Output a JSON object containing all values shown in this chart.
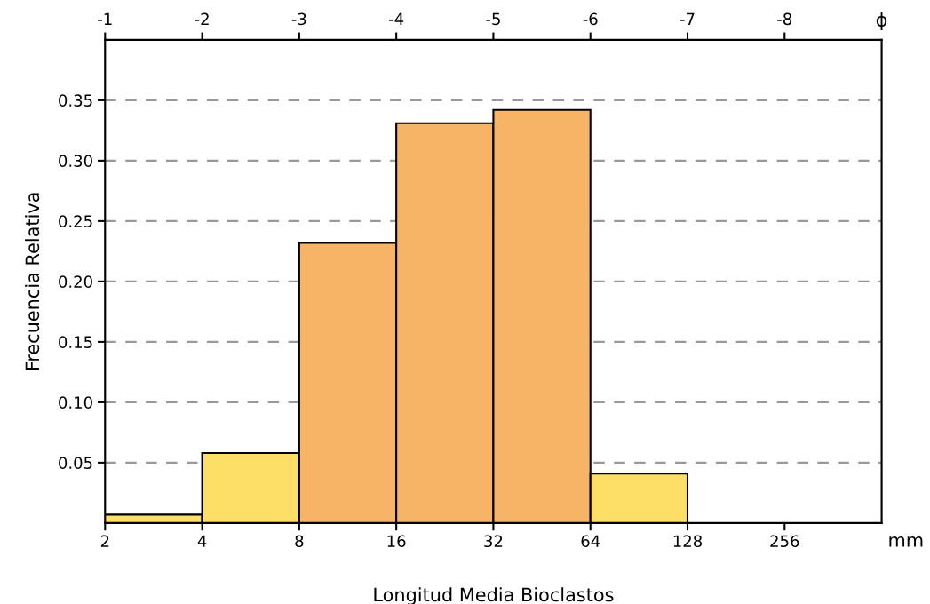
{
  "chart_data": {
    "type": "histogram",
    "xlabel": "Longitud Media Bioclastos",
    "ylabel": "Frecuencia Relativa",
    "x2label": "ϕ",
    "bins": [
      2,
      4,
      8,
      16,
      32,
      64,
      128
    ],
    "values": [
      0.007,
      0.058,
      0.232,
      0.331,
      0.342,
      0.041
    ],
    "colors": [
      "#fddf68",
      "#fddf68",
      "#f8b466",
      "#f8b466",
      "#f8b466",
      "#fddf68"
    ],
    "log": "x",
    "xlim": [
      2,
      512
    ],
    "xticks": [
      2,
      4,
      8,
      16,
      32,
      64,
      128,
      256
    ],
    "x2lim": [
      -1,
      -9
    ],
    "x2ticks": [
      -1,
      -2,
      -3,
      -4,
      -5,
      -6,
      -7,
      -8
    ],
    "ylim": [
      0,
      0.4
    ],
    "yticks": [
      {
        "value": 0.05,
        "label": "0.05"
      },
      {
        "value": 0.1,
        "label": "0.10"
      },
      {
        "value": 0.15,
        "label": "0.15"
      },
      {
        "value": 0.2,
        "label": "0.20"
      },
      {
        "value": 0.25,
        "label": "0.25"
      },
      {
        "value": 0.3,
        "label": "0.30"
      },
      {
        "value": 0.35,
        "label": "0.35"
      }
    ],
    "grid": "y",
    "line_style": "dashed",
    "annotations": [
      "mm"
    ]
  }
}
